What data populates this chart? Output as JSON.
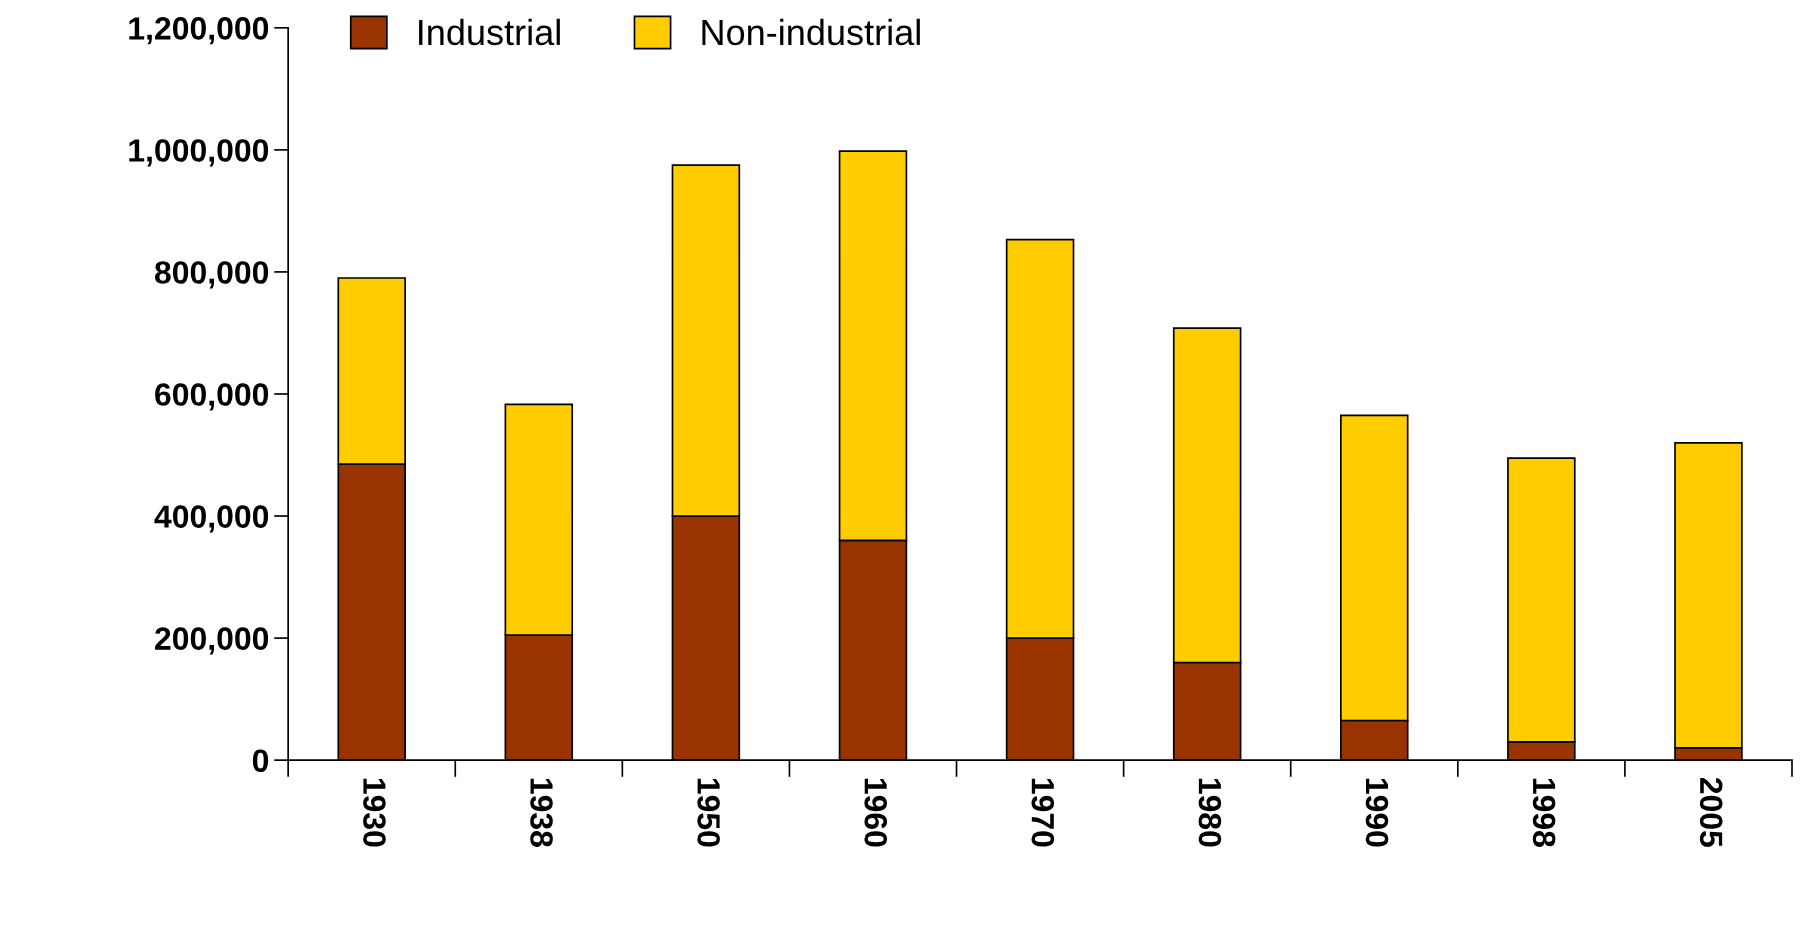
{
  "chart_data": {
    "type": "bar",
    "stacked": true,
    "categories": [
      "1930",
      "1938",
      "1950",
      "1960",
      "1970",
      "1980",
      "1990",
      "1998",
      "2005"
    ],
    "series": [
      {
        "name": "Industrial",
        "color": "#993300",
        "values": [
          485000,
          205000,
          400000,
          360000,
          200000,
          160000,
          65000,
          30000,
          20000
        ]
      },
      {
        "name": "Non-industrial",
        "color": "#ffcc00",
        "values": [
          305000,
          378000,
          575000,
          638000,
          653000,
          548000,
          500000,
          465000,
          500000
        ]
      }
    ],
    "ylim": [
      0,
      1200000
    ],
    "yticks": [
      {
        "value": 0,
        "label": "0"
      },
      {
        "value": 200000,
        "label": "200,000"
      },
      {
        "value": 400000,
        "label": "400,000"
      },
      {
        "value": 600000,
        "label": "600,000"
      },
      {
        "value": 800000,
        "label": "800,000"
      },
      {
        "value": 1000000,
        "label": "1,000,000"
      },
      {
        "value": 1200000,
        "label": "1,200,000"
      }
    ],
    "grid": false,
    "legend": "top"
  }
}
